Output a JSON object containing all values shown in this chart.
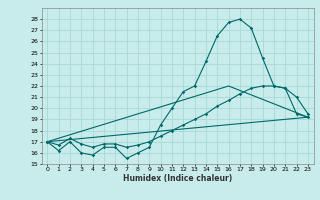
{
  "xlabel": "Humidex (Indice chaleur)",
  "background_color": "#c8ecec",
  "grid_color": "#a8d8d8",
  "line_color": "#006868",
  "xlim": [
    -0.5,
    23.5
  ],
  "ylim": [
    15,
    29
  ],
  "yticks": [
    15,
    16,
    17,
    18,
    19,
    20,
    21,
    22,
    23,
    24,
    25,
    26,
    27,
    28
  ],
  "xticks": [
    0,
    1,
    2,
    3,
    4,
    5,
    6,
    7,
    8,
    9,
    10,
    11,
    12,
    13,
    14,
    15,
    16,
    17,
    18,
    19,
    20,
    21,
    22,
    23
  ],
  "line1_x": [
    0,
    1,
    2,
    3,
    4,
    5,
    6,
    7,
    8,
    9,
    10,
    11,
    12,
    13,
    14,
    15,
    16,
    17,
    18,
    19,
    20,
    21,
    22,
    23
  ],
  "line1_y": [
    17.0,
    16.2,
    17.0,
    16.0,
    15.8,
    16.5,
    16.5,
    15.5,
    16.0,
    16.5,
    18.5,
    20.0,
    21.5,
    22.0,
    24.2,
    26.5,
    27.7,
    28.0,
    27.2,
    24.5,
    22.0,
    21.8,
    19.5,
    19.2
  ],
  "line2_x": [
    0,
    23
  ],
  "line2_y": [
    17.0,
    19.2
  ],
  "line3_x": [
    0,
    16,
    23
  ],
  "line3_y": [
    17.0,
    22.0,
    19.2
  ],
  "line4_x": [
    0,
    1,
    2,
    3,
    4,
    5,
    6,
    7,
    8,
    9,
    10,
    11,
    12,
    13,
    14,
    15,
    16,
    17,
    18,
    19,
    20,
    21,
    22,
    23
  ],
  "line4_y": [
    17.0,
    16.7,
    17.3,
    16.8,
    16.5,
    16.8,
    16.8,
    16.5,
    16.7,
    17.0,
    17.5,
    18.0,
    18.5,
    19.0,
    19.5,
    20.2,
    20.7,
    21.3,
    21.8,
    22.0,
    22.0,
    21.8,
    21.0,
    19.5
  ]
}
